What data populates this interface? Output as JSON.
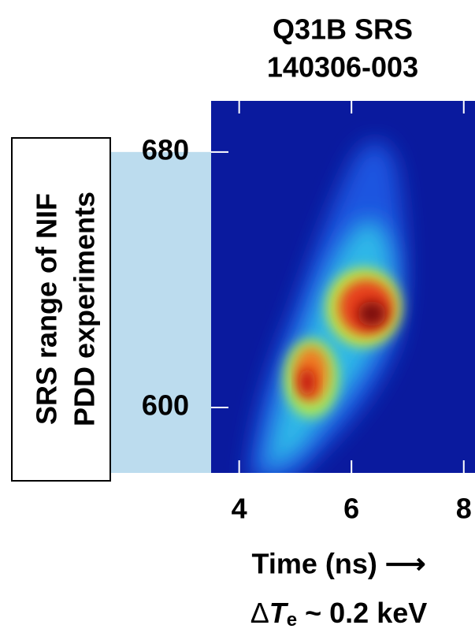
{
  "chart_data": {
    "type": "heatmap",
    "title": [
      "Q31B SRS",
      "140306-003"
    ],
    "xlabel": "Time (ns) ⟶",
    "xlim": [
      3.5,
      8.2
    ],
    "xticks": [
      4,
      6,
      8
    ],
    "ylim": [
      579.5,
      696
    ],
    "yticks": [
      600,
      680
    ],
    "band": {
      "from": 579.5,
      "to": 680,
      "color": "#bcdcee"
    },
    "band_label": [
      "SRS range of NIF",
      "PDD experiments"
    ],
    "annotation": [
      "Δ",
      "T",
      "e",
      " ~ 0.2 keV"
    ]
  }
}
